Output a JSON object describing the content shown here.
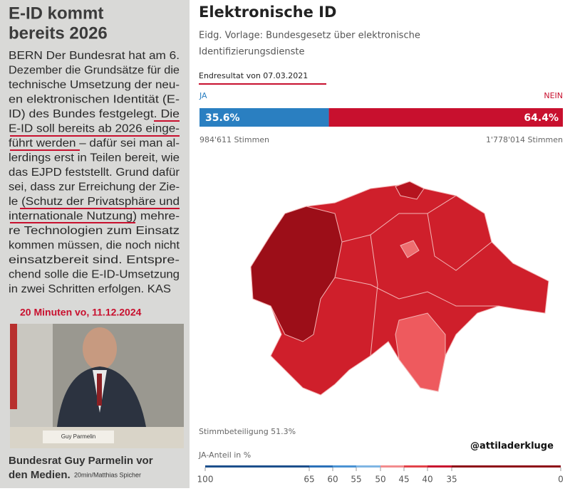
{
  "newspaper": {
    "title_lines": [
      "E-ID kommt",
      "bereits 2026"
    ],
    "article_lines": [
      "BERN Der Bundesrat hat am 6.",
      "Dezember die Grundsätze für die",
      "technische Umsetzung der neu-",
      "en elektronischen Identität (E-",
      "ID) des Bundes festgelegt. Die",
      "E-ID soll bereits ab 2026 einge-",
      "führt werden – dafür sei man al-",
      "lerdings erst in Teilen bereit, wie",
      "das EJPD feststellt. Grund dafür",
      "sei, dass zur Erreichung der Zie-",
      "le (Schutz der Privatsphäre und",
      "internationale Nutzung) mehre-",
      "re Technologien zum Einsatz",
      "kommen müssen, die noch nicht",
      "einsatzbereit sind. Entspre-",
      "chend solle die E-ID-Umsetzung",
      "in zwei Schritten erfolgen. KAS"
    ],
    "annotation": "20 Minuten vo, 11.12.2024",
    "photo_label": "Guy Parmelin",
    "caption_lines": [
      "Bundesrat Guy Parmelin vor",
      "den Medien."
    ],
    "credit": "20min/Matthias Spicher"
  },
  "result": {
    "title": "Elektronische ID",
    "subtitle_lines": [
      "Eidg. Vorlage: Bundesgesetz über elektronische",
      "Identifizierungsdienste"
    ],
    "status": "Endresultat von 07.03.2021",
    "yes": {
      "label": "JA",
      "value": 35.6,
      "value_label": "35.6%",
      "votes": "984'611 Stimmen"
    },
    "no": {
      "label": "NEIN",
      "value": 64.4,
      "value_label": "64.4%",
      "votes": "1'778'014 Stimmen"
    },
    "turnout": "Stimmbeteiligung 51.3%",
    "watermark": "@attiladerkluge",
    "legend_title": "JA-Anteil in %",
    "legend_ticks": [
      100,
      65,
      60,
      55,
      50,
      45,
      40,
      35,
      0
    ]
  }
}
